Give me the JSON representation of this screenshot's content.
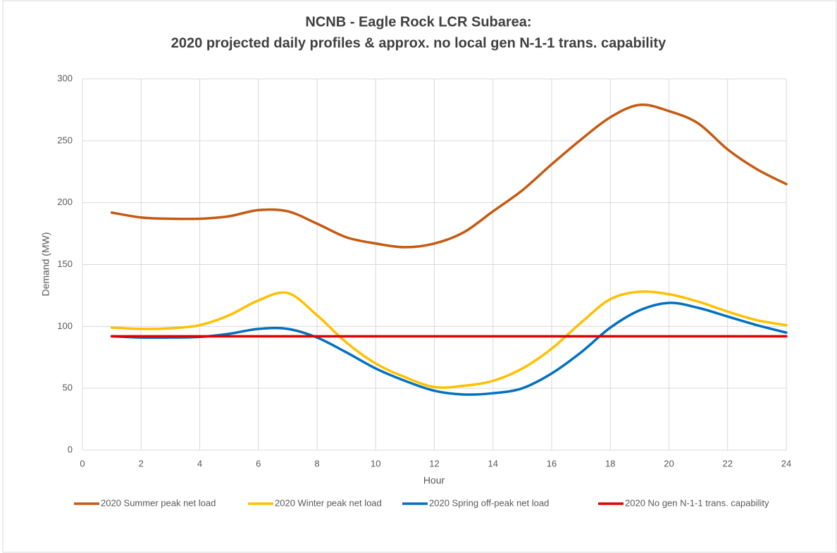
{
  "chart_data": {
    "type": "line",
    "title": [
      "NCNB - Eagle Rock LCR Subarea:",
      "2020 projected daily profiles & approx. no local gen N-1-1 trans. capability"
    ],
    "x_label": "Hour",
    "y_label": "Demand (MW)",
    "x": [
      1,
      2,
      3,
      4,
      5,
      6,
      7,
      8,
      9,
      10,
      11,
      12,
      13,
      14,
      15,
      16,
      17,
      18,
      19,
      20,
      21,
      22,
      23,
      24
    ],
    "xlim": [
      0,
      24
    ],
    "xticks": [
      0,
      2,
      4,
      6,
      8,
      10,
      12,
      14,
      16,
      18,
      20,
      22,
      24
    ],
    "ylim": [
      0,
      300
    ],
    "yticks": [
      0,
      50,
      100,
      150,
      200,
      250,
      300
    ],
    "grid": true,
    "smooth": true,
    "legend": "bottom",
    "series": [
      {
        "name": "2020 Summer peak net load",
        "color": "#c55a11",
        "values": [
          192,
          188,
          187,
          187,
          189,
          194,
          193,
          183,
          172,
          167,
          164,
          167,
          176,
          193,
          210,
          231,
          251,
          269,
          279,
          274,
          264,
          243,
          227,
          215
        ]
      },
      {
        "name": "2020 Winter peak net load",
        "color": "#ffc000",
        "values": [
          99,
          98,
          98.5,
          101,
          109,
          121,
          127,
          109,
          87,
          70,
          59,
          51,
          52,
          56,
          66,
          82,
          103,
          122,
          128,
          126,
          120,
          112,
          105,
          101
        ]
      },
      {
        "name": "2020 Spring off-peak net load",
        "color": "#0070c0",
        "values": [
          92,
          91,
          91,
          91.5,
          94,
          98,
          98,
          91,
          79,
          66,
          56,
          48,
          45,
          46,
          50,
          62,
          79,
          99,
          113,
          119,
          115,
          108,
          101,
          95
        ]
      },
      {
        "name": "2020 No gen N-1-1 trans. capability",
        "color": "#e00000",
        "values": [
          92,
          92,
          92,
          92,
          92,
          92,
          92,
          92,
          92,
          92,
          92,
          92,
          92,
          92,
          92,
          92,
          92,
          92,
          92,
          92,
          92,
          92,
          92,
          92
        ]
      }
    ]
  }
}
